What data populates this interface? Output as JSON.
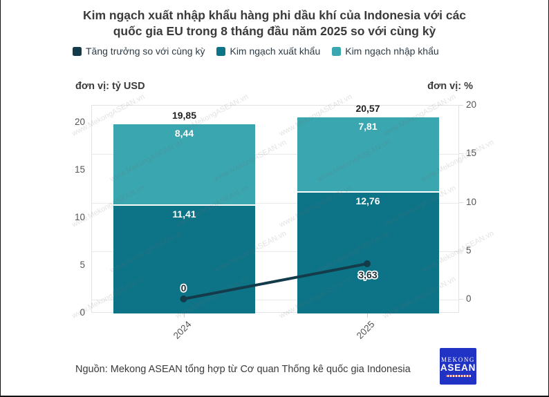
{
  "title": {
    "line1": "Kim ngạch xuất nhập khẩu hàng phi dầu khí của Indonesia với các",
    "line2": "quốc gia EU trong 8 tháng đầu năm 2025 so với cùng kỳ"
  },
  "legend": {
    "items": [
      {
        "label": "Tăng trưởng so với cùng kỳ",
        "color": "#143b49"
      },
      {
        "label": "Kim ngạch xuất khẩu",
        "color": "#0d7487"
      },
      {
        "label": "Kim ngạch nhập khẩu",
        "color": "#3aa6af"
      }
    ]
  },
  "units": {
    "left": "đơn vị: tỷ USD",
    "right": "đơn vị: %"
  },
  "chart_data": {
    "type": "bar",
    "subtype": "stacked-bars-with-growth-line",
    "categories": [
      "2024",
      "2025"
    ],
    "series": [
      {
        "name": "Kim ngạch xuất khẩu",
        "kind": "bar-segment-bottom",
        "axis": "left",
        "values": [
          11.41,
          12.76
        ],
        "display": [
          "11,41",
          "12,76"
        ],
        "color": "#0d7487"
      },
      {
        "name": "Kim ngạch nhập khẩu",
        "kind": "bar-segment-top",
        "axis": "left",
        "values": [
          8.44,
          7.81
        ],
        "display": [
          "8,44",
          "7,81"
        ],
        "color": "#3aa6af"
      },
      {
        "name": "Tăng trưởng so với cùng kỳ",
        "kind": "line",
        "axis": "right",
        "values": [
          0,
          3.63
        ],
        "display": [
          "0",
          "3,63"
        ],
        "color": "#143b49"
      }
    ],
    "totals": {
      "values": [
        19.85,
        20.57
      ],
      "display": [
        "19,85",
        "20,57"
      ]
    },
    "left_axis": {
      "unit": "tỷ USD",
      "range": [
        0,
        20
      ],
      "ticks": [
        0,
        5,
        10,
        15,
        20
      ]
    },
    "right_axis": {
      "unit": "%",
      "range": [
        0,
        20
      ],
      "ticks": [
        0,
        5,
        10,
        15,
        20
      ]
    },
    "grid": true,
    "legend_position": "top-left"
  },
  "watermark": "www.MekongASEAN.vn",
  "source": "Nguồn: Mekong ASEAN tổng hợp từ Cơ quan Thống kê quốc gia Indonesia",
  "logo": {
    "line1": "MEKONG",
    "line2": "ASEAN"
  }
}
